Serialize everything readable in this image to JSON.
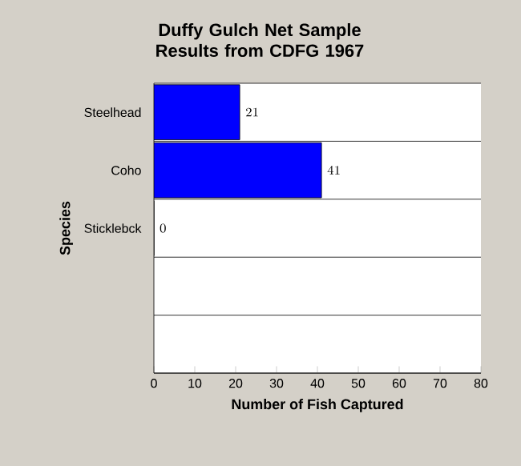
{
  "chart_data": {
    "type": "bar",
    "orientation": "horizontal",
    "title": "Duffy Gulch Net Sample Results from CDFG 1967",
    "xlabel": "Number of Fish Captured",
    "ylabel": "Species",
    "categories": [
      "Steelhead",
      "Coho",
      "Sticklebck",
      null,
      null
    ],
    "values": [
      21,
      41,
      0,
      null,
      null
    ],
    "color": "#0000ff",
    "xlim": [
      0,
      80
    ],
    "xticks": [
      0,
      10,
      20,
      30,
      40,
      50,
      60,
      70,
      80
    ],
    "grid": "y",
    "data_labels": true
  }
}
